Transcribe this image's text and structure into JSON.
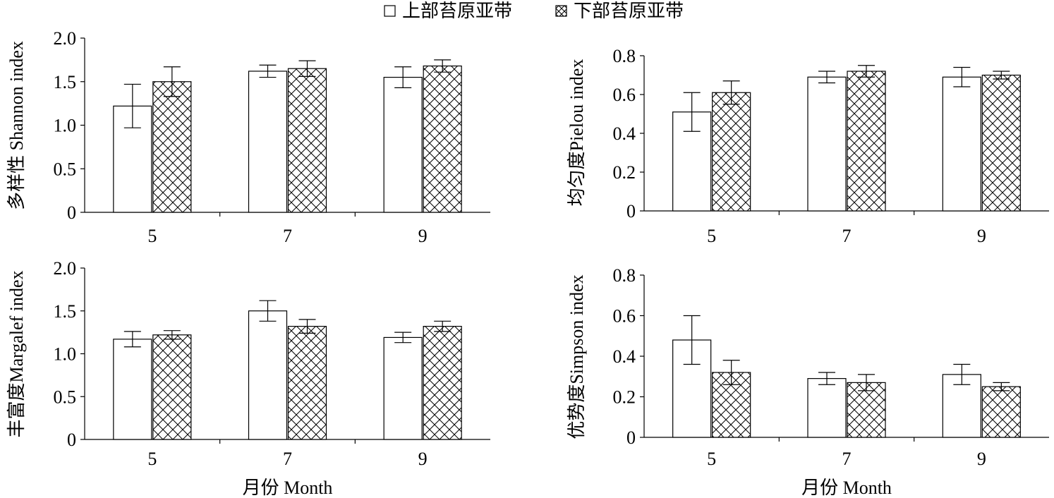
{
  "legend": {
    "upper_label": "上部苔原亚带",
    "lower_label": "下部苔原亚带",
    "upper_icon": "open-square-icon",
    "lower_icon": "crosshatch-square-icon"
  },
  "colors": {
    "axis": "#000000",
    "bar_fill": "#ffffff",
    "hatch": "#000000"
  },
  "chart_data": [
    {
      "type": "bar",
      "panel": "top-left",
      "ylabel": "多样性 Shannon index",
      "xlabel": "",
      "categories": [
        "5",
        "7",
        "9"
      ],
      "ylim": [
        0,
        2.0
      ],
      "yticks": [
        0,
        0.5,
        1.0,
        1.5,
        2.0
      ],
      "ytick_labels": [
        "0",
        "0.5",
        "1.0",
        "1.5",
        "2.0"
      ],
      "series": [
        {
          "name": "上部苔原亚带",
          "values": [
            1.22,
            1.62,
            1.55
          ],
          "errors": [
            0.25,
            0.07,
            0.12
          ]
        },
        {
          "name": "下部苔原亚带",
          "values": [
            1.5,
            1.65,
            1.68
          ],
          "errors": [
            0.17,
            0.09,
            0.07
          ]
        }
      ]
    },
    {
      "type": "bar",
      "panel": "top-right",
      "ylabel": "均匀度Pielou index",
      "xlabel": "",
      "categories": [
        "5",
        "7",
        "9"
      ],
      "ylim": [
        0,
        0.8
      ],
      "yticks": [
        0,
        0.2,
        0.4,
        0.6,
        0.8
      ],
      "ytick_labels": [
        "0",
        "0.2",
        "0.4",
        "0.6",
        "0.8"
      ],
      "series": [
        {
          "name": "上部苔原亚带",
          "values": [
            0.51,
            0.69,
            0.69
          ],
          "errors": [
            0.1,
            0.03,
            0.05
          ]
        },
        {
          "name": "下部苔原亚带",
          "values": [
            0.61,
            0.72,
            0.7
          ],
          "errors": [
            0.06,
            0.03,
            0.02
          ]
        }
      ]
    },
    {
      "type": "bar",
      "panel": "bottom-left",
      "ylabel": "丰富度Margalef index",
      "xlabel": "月份 Month",
      "categories": [
        "5",
        "7",
        "9"
      ],
      "ylim": [
        0,
        2.0
      ],
      "yticks": [
        0,
        0.5,
        1.0,
        1.5,
        2.0
      ],
      "ytick_labels": [
        "0",
        "0.5",
        "1.0",
        "1.5",
        "2.0"
      ],
      "series": [
        {
          "name": "上部苔原亚带",
          "values": [
            1.17,
            1.5,
            1.19
          ],
          "errors": [
            0.09,
            0.12,
            0.06
          ]
        },
        {
          "name": "下部苔原亚带",
          "values": [
            1.22,
            1.32,
            1.32
          ],
          "errors": [
            0.05,
            0.08,
            0.06
          ]
        }
      ]
    },
    {
      "type": "bar",
      "panel": "bottom-right",
      "ylabel": "优势度Simpson index",
      "xlabel": "月份 Month",
      "categories": [
        "5",
        "7",
        "9"
      ],
      "ylim": [
        0,
        0.8
      ],
      "yticks": [
        0,
        0.2,
        0.4,
        0.6,
        0.8
      ],
      "ytick_labels": [
        "0",
        "0.2",
        "0.4",
        "0.6",
        "0.8"
      ],
      "series": [
        {
          "name": "上部苔原亚带",
          "values": [
            0.48,
            0.29,
            0.31
          ],
          "errors": [
            0.12,
            0.03,
            0.05
          ]
        },
        {
          "name": "下部苔原亚带",
          "values": [
            0.32,
            0.27,
            0.25
          ],
          "errors": [
            0.06,
            0.04,
            0.02
          ]
        }
      ]
    }
  ]
}
